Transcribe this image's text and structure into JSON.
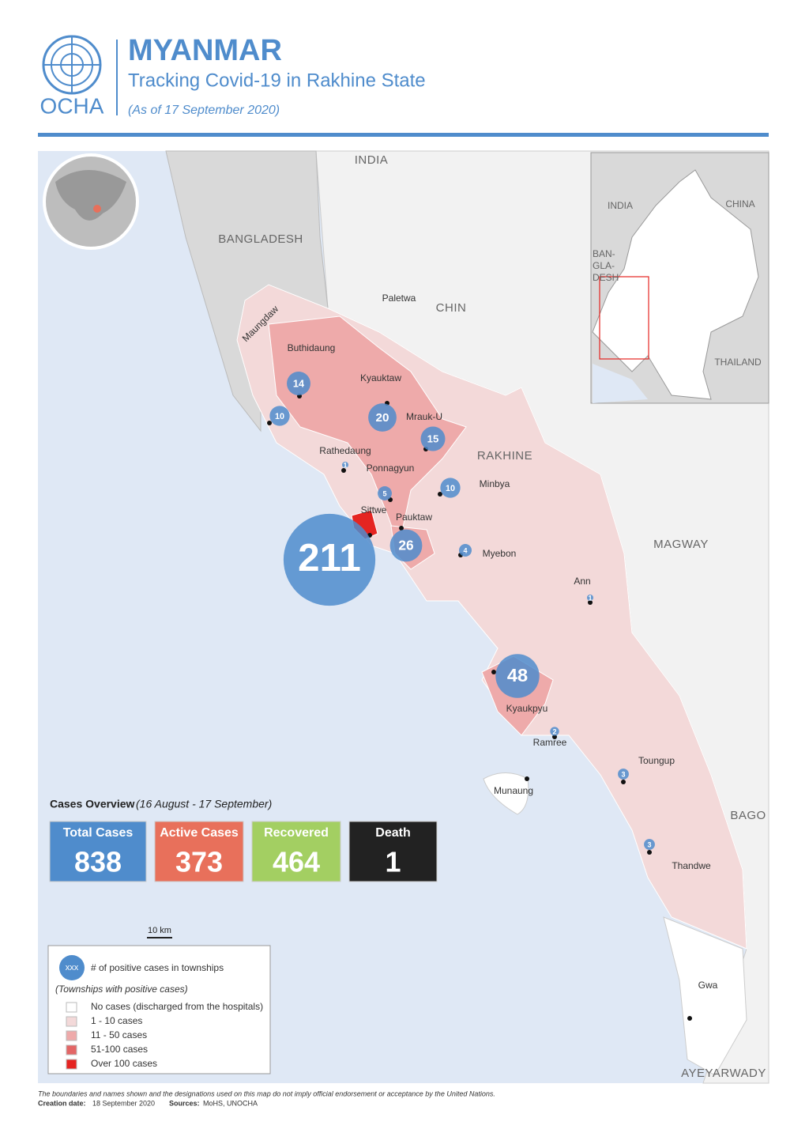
{
  "header": {
    "org": "OCHA",
    "title": "MYANMAR",
    "subtitle": "Tracking Covid-19 in Rakhine State",
    "date": "(As of 17 September 2020)"
  },
  "regions": [
    "INDIA",
    "BANGLADESH",
    "CHIN",
    "RAKHINE",
    "MAGWAY",
    "BAGO",
    "AYEYARWADY"
  ],
  "inset": {
    "labels": [
      "INDIA",
      "CHINA",
      "BAN-",
      "GLA-",
      "DESH",
      "THAILAND"
    ]
  },
  "places": [
    "Paletwa",
    "Munaung",
    "Gwa"
  ],
  "townships": [
    {
      "name": "Maungdaw",
      "cases": 10
    },
    {
      "name": "Buthidaung",
      "cases": 14
    },
    {
      "name": "Kyauktaw",
      "cases": 20
    },
    {
      "name": "Mrauk-U",
      "cases": 15
    },
    {
      "name": "Rathedaung",
      "cases": 1
    },
    {
      "name": "Ponnagyun",
      "cases": 5
    },
    {
      "name": "Sittwe",
      "cases": 211
    },
    {
      "name": "Pauktaw",
      "cases": 26
    },
    {
      "name": "Minbya",
      "cases": 10
    },
    {
      "name": "Myebon",
      "cases": 4
    },
    {
      "name": "Ann",
      "cases": 1
    },
    {
      "name": "Kyaukpyu",
      "cases": 48
    },
    {
      "name": "Ramree",
      "cases": 2
    },
    {
      "name": "Toungup",
      "cases": 3
    },
    {
      "name": "Thandwe",
      "cases": 3
    }
  ],
  "overview": {
    "title": "Cases Overview",
    "period": "(16 August - 17 September)",
    "cards": [
      {
        "label": "Total Cases",
        "value": 838,
        "color": "#4f8ccc"
      },
      {
        "label": "Active Cases",
        "value": 373,
        "color": "#e8705b"
      },
      {
        "label": "Recovered",
        "value": 464,
        "color": "#a3cf62"
      },
      {
        "label": "Death",
        "value": 1,
        "color": "#222222"
      }
    ]
  },
  "scale": "10 km",
  "legend": {
    "bubble": "xxx",
    "bubble_text": "# of positive cases in townships",
    "note": "(Townships with positive cases)",
    "classes": [
      {
        "label": "No cases (discharged from the hospitals)",
        "color": "#ffffff"
      },
      {
        "label": "1 - 10 cases",
        "color": "#f3d9d9"
      },
      {
        "label": "11 - 50 cases",
        "color": "#eeaaaa"
      },
      {
        "label": "51-100 cases",
        "color": "#e36666"
      },
      {
        "label": "Over 100 cases",
        "color": "#e52421"
      }
    ]
  },
  "footer": {
    "disclaimer": "The boundaries and names shown and the designations used on this map do not imply official endorsement or acceptance by the United Nations.",
    "created_label": "Creation date:",
    "created": "18 September 2020",
    "sources_label": "Sources:",
    "sources": "MoHS, UNOCHA"
  }
}
